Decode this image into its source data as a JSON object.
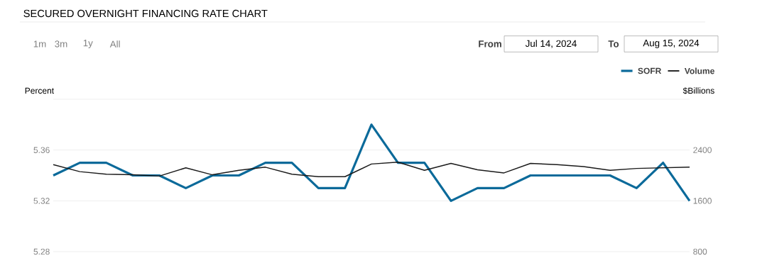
{
  "chart_data": {
    "type": "line",
    "title": "SECURED OVERNIGHT FINANCING RATE CHART",
    "ylabel": "Percent",
    "y2label": "$Billions",
    "annotations": [
      "1m",
      "3m",
      "1y",
      "All",
      "From",
      "Jul 14, 2024",
      "To",
      "Aug 15, 2024"
    ],
    "categories": [
      null,
      null,
      null,
      null,
      null,
      null,
      null,
      null,
      null,
      null,
      null,
      null,
      null,
      null,
      null,
      null,
      null,
      null,
      null,
      null,
      null,
      null,
      null,
      null,
      null
    ],
    "series": [
      {
        "name": "SOFR",
        "color": "#0b6a9a",
        "values": [
          5.34,
          5.35,
          5.35,
          5.34,
          5.34,
          5.33,
          5.34,
          5.34,
          5.35,
          5.35,
          5.33,
          5.33,
          5.38,
          5.35,
          5.35,
          5.32,
          5.33,
          5.33,
          5.34,
          5.34,
          5.34,
          5.34,
          5.33,
          5.35,
          5.32
        ]
      },
      {
        "name": "Volume",
        "color": "#1a1a1a",
        "axis": "y2",
        "values": [
          2170,
          2060,
          2020,
          2010,
          1990,
          2120,
          2010,
          2080,
          2130,
          2020,
          1980,
          1980,
          2180,
          2210,
          2080,
          2190,
          2090,
          2040,
          2190,
          2170,
          2140,
          2080,
          2110,
          2120,
          2130
        ]
      }
    ],
    "ylim": [
      5.28,
      5.4
    ],
    "yticks": [
      5.28,
      5.32,
      5.36,
      {
        "value": 5.4,
        "label": null
      }
    ],
    "y2lim": [
      800,
      3200
    ],
    "y2ticks": [
      800,
      1600,
      2400
    ],
    "grid": "y",
    "legend": "top right",
    "marker": "none",
    "line_style": "solid"
  }
}
